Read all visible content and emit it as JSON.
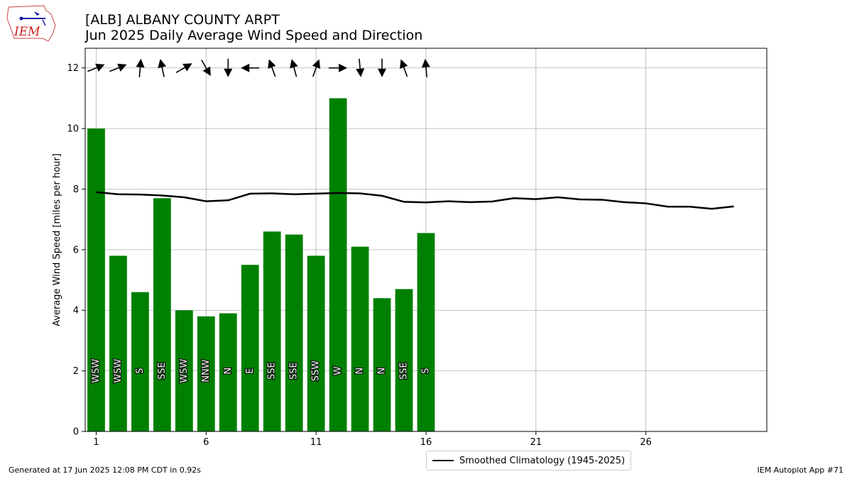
{
  "logo_text": "IEM",
  "title": "[ALB] ALBANY COUNTY ARPT",
  "subtitle": "Jun 2025 Daily Average Wind Speed and Direction",
  "footer_left": "Generated at 17 Jun 2025 12:08 PM CDT in 0.92s",
  "footer_right": "IEM Autoplot App #71",
  "chart_data": {
    "type": "bar",
    "ylabel": "Average Wind Speed [miles per hour]",
    "xlim": [
      0.5,
      31.5
    ],
    "ylim": [
      0,
      12.65
    ],
    "xticks": [
      1,
      6,
      11,
      16,
      21,
      26
    ],
    "yticks": [
      0,
      2,
      4,
      6,
      8,
      10,
      12
    ],
    "grid": true,
    "bar_color": "#008000",
    "days": [
      1,
      2,
      3,
      4,
      5,
      6,
      7,
      8,
      9,
      10,
      11,
      12,
      13,
      14,
      15,
      16
    ],
    "values": [
      10.0,
      5.8,
      4.6,
      7.7,
      4.0,
      3.8,
      3.9,
      5.5,
      6.6,
      6.5,
      5.8,
      11.0,
      6.1,
      4.4,
      4.7,
      6.55
    ],
    "directions": [
      "WSW",
      "WSW",
      "S",
      "SSE",
      "WSW",
      "NNW",
      "N",
      "E",
      "SSE",
      "SSE",
      "SSW",
      "W",
      "N",
      "N",
      "SSE",
      "S"
    ],
    "direction_degrees": [
      248,
      248,
      185,
      168,
      240,
      330,
      360,
      90,
      160,
      165,
      200,
      270,
      355,
      360,
      160,
      175
    ],
    "arrow_y": 12,
    "climatology": {
      "name": "Smoothed Climatology (1945-2025)",
      "x": [
        1,
        2,
        3,
        4,
        5,
        6,
        7,
        8,
        9,
        10,
        11,
        12,
        13,
        14,
        15,
        16,
        17,
        18,
        19,
        20,
        21,
        22,
        23,
        24,
        25,
        26,
        27,
        28,
        29,
        30
      ],
      "values": [
        7.9,
        7.83,
        7.82,
        7.79,
        7.73,
        7.6,
        7.63,
        7.85,
        7.86,
        7.83,
        7.85,
        7.87,
        7.86,
        7.78,
        7.58,
        7.56,
        7.6,
        7.57,
        7.59,
        7.7,
        7.67,
        7.73,
        7.66,
        7.65,
        7.57,
        7.53,
        7.42,
        7.42,
        7.35,
        7.43
      ],
      "color": "#000000"
    }
  }
}
